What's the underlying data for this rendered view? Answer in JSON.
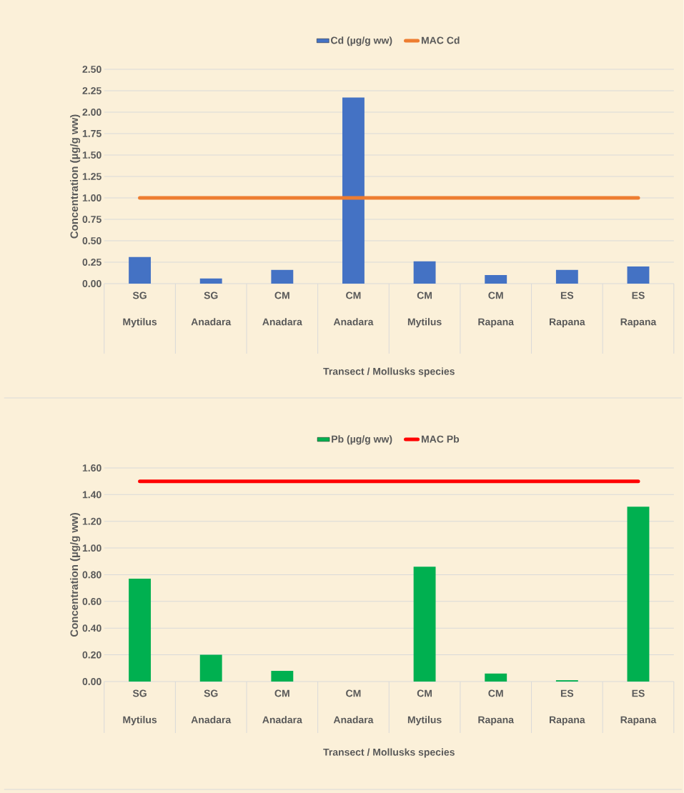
{
  "chart_data": [
    {
      "type": "bar",
      "categories": [
        "SG Mytilus",
        "SG Anadara",
        "CM Anadara",
        "CM Anadara",
        "CM Mytilus",
        "CM Rapana",
        "ES Rapana",
        "ES Rapana"
      ],
      "series": [
        {
          "name": "Cd (µg/g ww)",
          "color": "#4472c4",
          "values": [
            0.31,
            0.06,
            0.16,
            2.17,
            0.26,
            0.1,
            0.16,
            0.2
          ]
        },
        {
          "name": "MAC Cd",
          "type": "line",
          "color": "#ed7d31",
          "values": [
            1.0,
            1.0,
            1.0,
            1.0,
            1.0,
            1.0,
            1.0,
            1.0
          ]
        }
      ],
      "xlabel": "Transect / Mollusks species",
      "ylabel": "Concentration (µg/g ww)",
      "ylim": [
        0,
        2.5
      ],
      "yticks": [
        {
          "value": 0,
          "label": "0.00"
        },
        {
          "value": 0.25,
          "label": "0.25"
        },
        {
          "value": 0.5,
          "label": "0.50"
        },
        {
          "value": 0.75,
          "label": "0.75"
        },
        {
          "value": 1.0,
          "label": "1.00"
        },
        {
          "value": 1.25,
          "label": "1.25"
        },
        {
          "value": 1.5,
          "label": "1.50"
        },
        {
          "value": 1.75,
          "label": "1.75"
        },
        {
          "value": 2.0,
          "label": "2.00"
        },
        {
          "value": 2.25,
          "label": "2.25"
        },
        {
          "value": 2.5,
          "label": "2.50"
        }
      ],
      "grid": "y",
      "legend": "top"
    },
    {
      "type": "bar",
      "categories": [
        "SG Mytilus",
        "SG Anadara",
        "CM Anadara",
        "CM Anadara",
        "CM Mytilus",
        "CM Rapana",
        "ES Rapana",
        "ES Rapana"
      ],
      "series": [
        {
          "name": "Pb (µg/g ww)",
          "color": "#00b050",
          "values": [
            0.77,
            0.2,
            0.08,
            0.0,
            0.86,
            0.06,
            0.01,
            1.31
          ]
        },
        {
          "name": "MAC Pb",
          "type": "line",
          "color": "#ff0000",
          "values": [
            1.5,
            1.5,
            1.5,
            1.5,
            1.5,
            1.5,
            1.5,
            1.5
          ]
        }
      ],
      "xlabel": "Transect / Mollusks species",
      "ylabel": "Concentration (µg/g ww)",
      "ylim": [
        0,
        1.6
      ],
      "yticks": [
        {
          "value": 0,
          "label": "0.00"
        },
        {
          "value": 0.2,
          "label": "0.20"
        },
        {
          "value": 0.4,
          "label": "0.40"
        },
        {
          "value": 0.6,
          "label": "0.60"
        },
        {
          "value": 0.8,
          "label": "0.80"
        },
        {
          "value": 1.0,
          "label": "1.00"
        },
        {
          "value": 1.2,
          "label": "1.20"
        },
        {
          "value": 1.4,
          "label": "1.40"
        },
        {
          "value": 1.6,
          "label": "1.60"
        }
      ],
      "grid": "y",
      "legend": "top"
    }
  ]
}
